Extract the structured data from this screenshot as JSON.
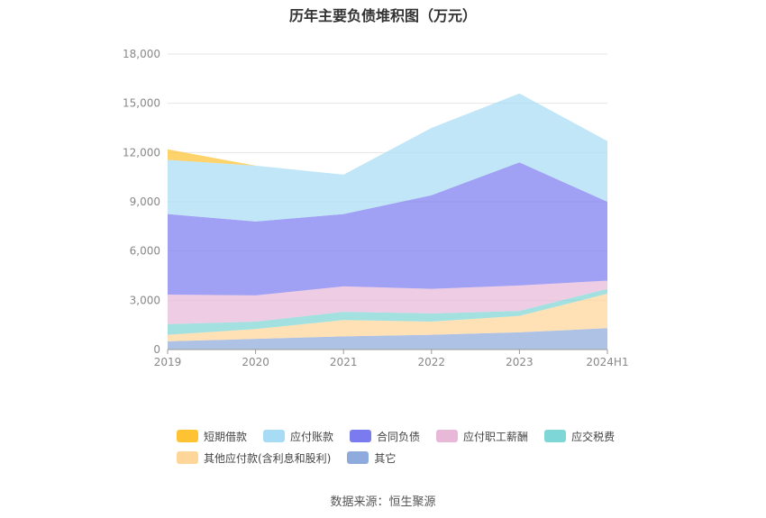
{
  "chart_data": {
    "type": "area",
    "stacked": true,
    "title": "历年主要负债堆积图（万元）",
    "categories": [
      "2019",
      "2020",
      "2021",
      "2022",
      "2023",
      "2024H1"
    ],
    "ylim": [
      0,
      18000
    ],
    "yticks": [
      0,
      3000,
      6000,
      9000,
      12000,
      15000,
      18000
    ],
    "ytick_labels": [
      "0",
      "3,000",
      "6,000",
      "9,000",
      "12,000",
      "15,000",
      "18,000"
    ],
    "grid": true,
    "legend_position": "bottom",
    "series": [
      {
        "name": "其它",
        "color": "#8faadc",
        "values": [
          500,
          650,
          800,
          900,
          1050,
          1300
        ]
      },
      {
        "name": "其他应付款(含利息和股利)",
        "color": "#ffd699",
        "values": [
          400,
          600,
          1000,
          800,
          1000,
          2100
        ]
      },
      {
        "name": "应交税费",
        "color": "#7fd6d6",
        "values": [
          650,
          450,
          500,
          500,
          300,
          300
        ]
      },
      {
        "name": "应付职工薪酬",
        "color": "#e8b8d8",
        "values": [
          1800,
          1600,
          1550,
          1500,
          1550,
          500
        ]
      },
      {
        "name": "合同负债",
        "color": "#7b7bf0",
        "values": [
          4900,
          4500,
          4400,
          5700,
          7500,
          4800
        ]
      },
      {
        "name": "应付账款",
        "color": "#a8dcf5",
        "values": [
          3300,
          3400,
          2400,
          4100,
          4200,
          3700
        ]
      },
      {
        "name": "短期借款",
        "color": "#ffc233",
        "values": [
          650,
          0,
          0,
          0,
          0,
          0
        ]
      }
    ],
    "source": "数据来源：恒生聚源"
  },
  "legend_rows": [
    [
      "短期借款",
      "应付账款",
      "合同负债",
      "应付职工薪酬",
      "应交税费"
    ],
    [
      "其他应付款(含利息和股利)",
      "其它"
    ]
  ]
}
